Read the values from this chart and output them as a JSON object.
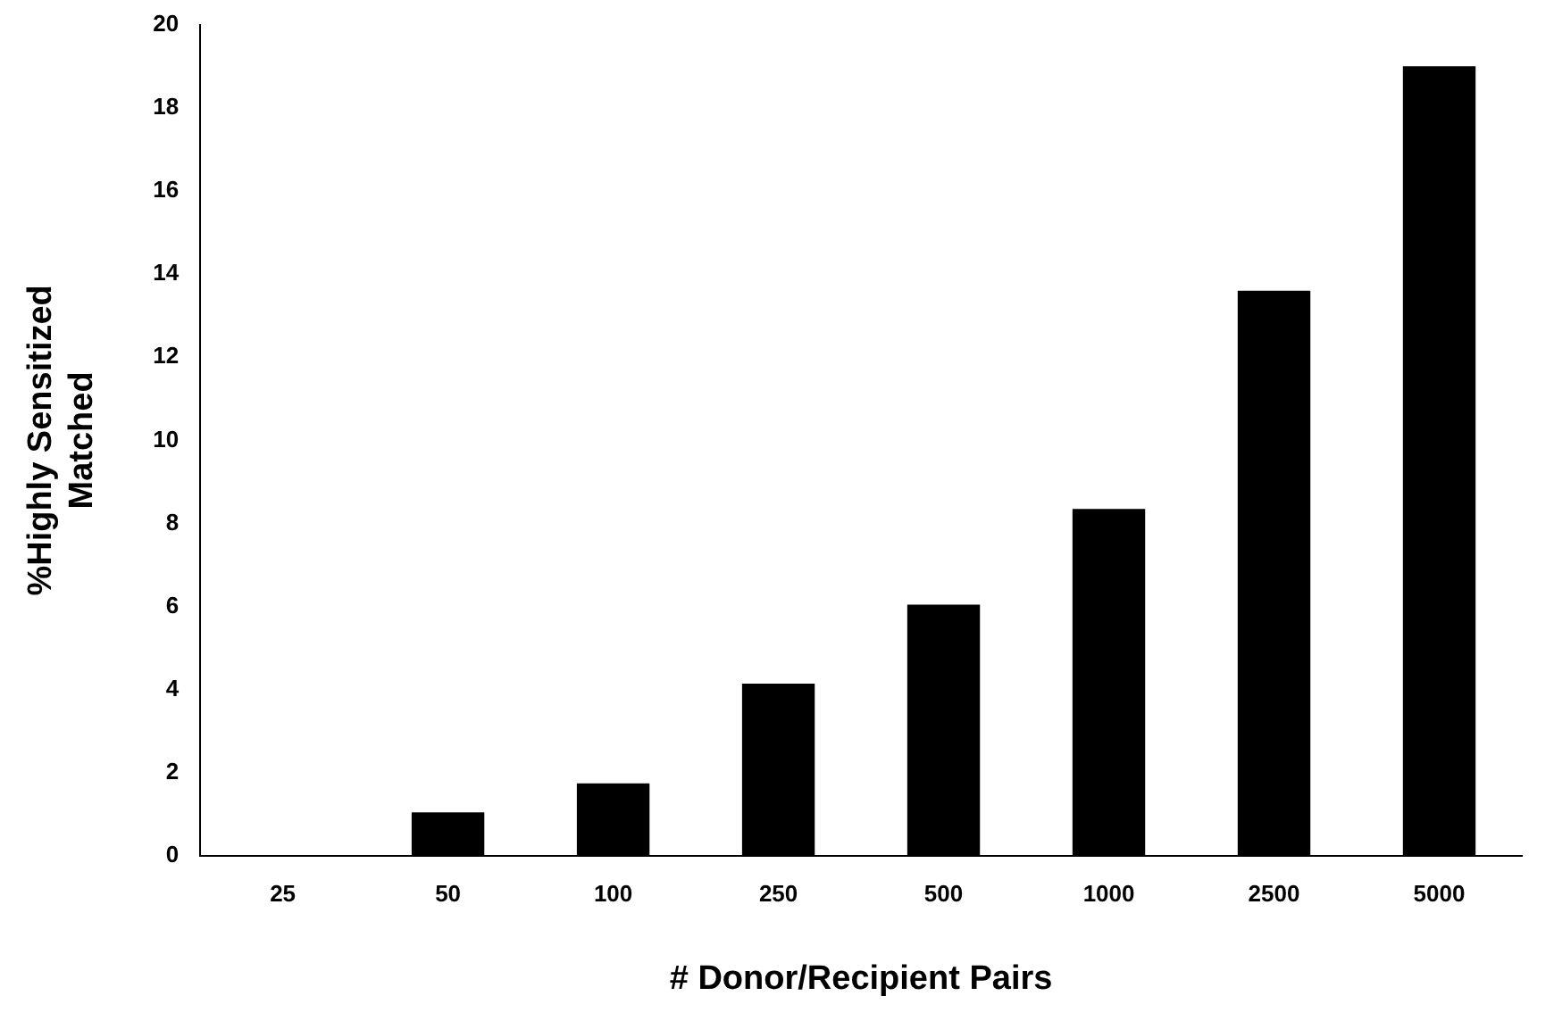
{
  "chart_data": {
    "type": "bar",
    "xlabel": "# Donor/Recipient Pairs",
    "ylabel": "%Highly Sensitized\nMatched",
    "categories": [
      "25",
      "50",
      "100",
      "250",
      "500",
      "1000",
      "2500",
      "5000"
    ],
    "values": [
      0,
      1.05,
      1.75,
      4.15,
      6.05,
      8.35,
      13.6,
      19
    ],
    "color": "#000000",
    "ylim": [
      0,
      20
    ],
    "yticks": [
      0,
      2,
      4,
      6,
      8,
      10,
      12,
      14,
      16,
      18,
      20
    ],
    "grid": false,
    "legend": false
  }
}
